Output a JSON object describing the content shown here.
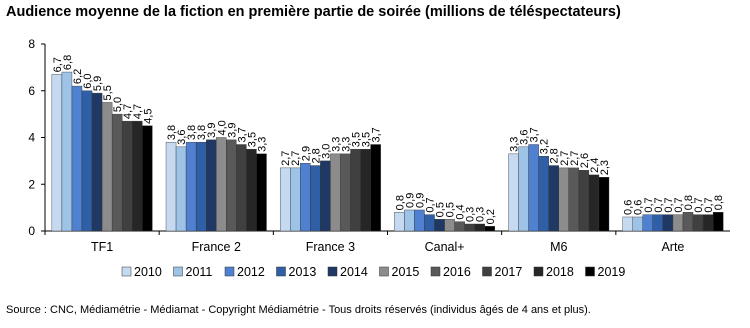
{
  "chart_data": {
    "type": "bar",
    "title": "Audience moyenne de la fiction en première partie de soirée (millions de téléspectateurs)",
    "categories": [
      "TF1",
      "France 2",
      "France 3",
      "Canal+",
      "M6",
      "Arte"
    ],
    "series": [
      {
        "name": "2010",
        "color": "#c5d9f1",
        "values": [
          6.7,
          3.8,
          2.7,
          0.8,
          3.3,
          0.6
        ],
        "value_labels": [
          "6,7",
          "3,8",
          "2,7",
          "0,8",
          "3,3",
          "0,6"
        ]
      },
      {
        "name": "2011",
        "color": "#9dc3e6",
        "values": [
          6.8,
          3.6,
          2.7,
          0.9,
          3.6,
          0.6
        ],
        "value_labels": [
          "6,8",
          "3,6",
          "2,7",
          "0,9",
          "3,6",
          "0,6"
        ]
      },
      {
        "name": "2012",
        "color": "#4f81d0",
        "values": [
          6.2,
          3.8,
          2.9,
          0.9,
          3.7,
          0.7
        ],
        "value_labels": [
          "6,2",
          "3,8",
          "2,9",
          "0,9",
          "3,7",
          "0,7"
        ]
      },
      {
        "name": "2013",
        "color": "#2f5fa7",
        "values": [
          6.0,
          3.8,
          2.8,
          0.7,
          3.2,
          0.7
        ],
        "value_labels": [
          "6,0",
          "3,8",
          "2,8",
          "0,7",
          "3,2",
          "0,7"
        ]
      },
      {
        "name": "2014",
        "color": "#1f3864",
        "values": [
          5.9,
          3.9,
          3.0,
          0.5,
          2.8,
          0.7
        ],
        "value_labels": [
          "5,9",
          "3,9",
          "3,0",
          "0,5",
          "2,8",
          "0,7"
        ]
      },
      {
        "name": "2015",
        "color": "#8c8c8c",
        "values": [
          5.5,
          4.0,
          3.3,
          0.5,
          2.7,
          0.7
        ],
        "value_labels": [
          "5,5",
          "4,0",
          "3,3",
          "0,5",
          "2,7",
          "0,7"
        ]
      },
      {
        "name": "2016",
        "color": "#595959",
        "values": [
          5.0,
          3.9,
          3.3,
          0.4,
          2.7,
          0.8
        ],
        "value_labels": [
          "5,0",
          "3,9",
          "3,3",
          "0,4",
          "2,7",
          "0,8"
        ]
      },
      {
        "name": "2017",
        "color": "#404040",
        "values": [
          4.7,
          3.7,
          3.5,
          0.3,
          2.6,
          0.7
        ],
        "value_labels": [
          "4,7",
          "3,7",
          "3,5",
          "0,3",
          "2,6",
          "0,7"
        ]
      },
      {
        "name": "2018",
        "color": "#262626",
        "values": [
          4.7,
          3.5,
          3.5,
          0.3,
          2.4,
          0.7
        ],
        "value_labels": [
          "4,7",
          "3,5",
          "3,5",
          "0,3",
          "2,4",
          "0,7"
        ]
      },
      {
        "name": "2019",
        "color": "#000000",
        "values": [
          4.5,
          3.3,
          3.7,
          0.2,
          2.3,
          0.8
        ],
        "value_labels": [
          "4,5",
          "3,3",
          "3,7",
          "0,2",
          "2,3",
          "0,8"
        ]
      }
    ],
    "ylim": [
      0,
      8
    ],
    "yticks": [
      0,
      2,
      4,
      6,
      8
    ],
    "grid": false,
    "legend": "bottom",
    "source": "Source : CNC, Médiamétrie - Médiamat - Copyright Médiamétrie - Tous droits réservés (individus âgés de 4 ans et plus)."
  }
}
